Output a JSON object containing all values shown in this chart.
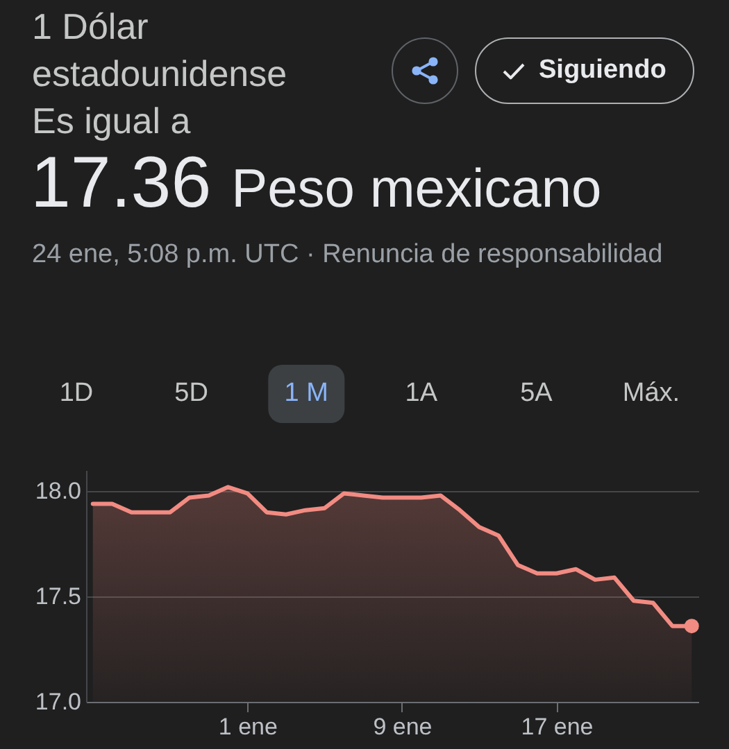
{
  "chart_data": {
    "type": "area",
    "title": "1 Dólar estadounidense",
    "subtitle": "Es igual a",
    "annotations": [
      "17.36 Peso mexicano",
      "24 ene, 5:08 p.m. UTC · Renuncia de responsabilidad",
      "Siguiendo",
      "1D",
      "5D",
      "1 M",
      "1A",
      "5A",
      "Máx."
    ],
    "categories": [
      null,
      null,
      null,
      null,
      null,
      null,
      null,
      null,
      "1 ene",
      null,
      null,
      null,
      null,
      null,
      null,
      null,
      "9 ene",
      null,
      null,
      null,
      null,
      null,
      null,
      null,
      "17 ene",
      null,
      null,
      null,
      null,
      null,
      null,
      null
    ],
    "series": [
      {
        "color": "#f28b82",
        "values": [
          17.94,
          17.94,
          17.9,
          17.9,
          17.9,
          17.97,
          17.98,
          18.02,
          17.99,
          17.9,
          17.89,
          17.91,
          17.92,
          17.99,
          17.98,
          17.97,
          17.97,
          17.97,
          17.98,
          17.91,
          17.83,
          17.79,
          17.65,
          17.61,
          17.61,
          17.63,
          17.58,
          17.59,
          17.48,
          17.47,
          17.36,
          17.36
        ]
      },
      {
        "type": "scatter",
        "color": "#f28b82",
        "marker": "circle",
        "values": [
          null,
          null,
          null,
          null,
          null,
          null,
          null,
          null,
          null,
          null,
          null,
          null,
          null,
          null,
          null,
          null,
          null,
          null,
          null,
          null,
          null,
          null,
          null,
          null,
          null,
          null,
          null,
          null,
          null,
          null,
          null,
          17.36
        ]
      }
    ],
    "ylim": [
      17,
      18.1
    ],
    "yticks": [
      {
        "value": 17,
        "label": "17.0"
      },
      17.5,
      {
        "value": 18,
        "label": "18.0"
      }
    ],
    "grid": "y"
  }
}
